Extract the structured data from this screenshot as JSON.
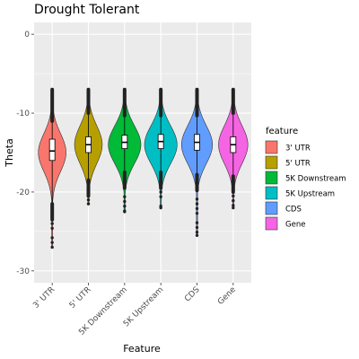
{
  "chart_data": {
    "type": "violin",
    "title": "Drought Tolerant",
    "xlabel": "Feature",
    "ylabel": "Theta",
    "ylim": [
      -31.5,
      1.5
    ],
    "yticks": [
      0,
      -10,
      -20,
      -30
    ],
    "categories": [
      "3' UTR",
      "5' UTR",
      "5K Downstream",
      "5K Upstream",
      "CDS",
      "Gene"
    ],
    "colors": [
      "#F8766D",
      "#B79F00",
      "#00BA38",
      "#00BFC4",
      "#619CFF",
      "#F564E3"
    ],
    "legend": {
      "title": "feature",
      "position": "right"
    },
    "grid": true,
    "series": [
      {
        "category": "3' UTR",
        "min": -27,
        "max": -7,
        "q1": -16,
        "median": -14.8,
        "q3": -13.3,
        "whisker_low": -21.5,
        "whisker_high": -11,
        "outliers_high_to": -7,
        "outliers_low_to": -27,
        "peak": -15,
        "width": 0.85
      },
      {
        "category": "5' UTR",
        "min": -21.5,
        "max": -7,
        "q1": -15,
        "median": -14,
        "q3": -13,
        "whisker_low": -18.5,
        "whisker_high": -10,
        "outliers_high_to": -7,
        "outliers_low_to": -21.5,
        "peak": -14,
        "width": 0.85
      },
      {
        "category": "5K Downstream",
        "min": -22.5,
        "max": -7,
        "q1": -14.5,
        "median": -13.7,
        "q3": -12.8,
        "whisker_low": -17.5,
        "whisker_high": -10.3,
        "outliers_high_to": -7,
        "outliers_low_to": -22.5,
        "peak": -14,
        "width": 1.0
      },
      {
        "category": "5K Upstream",
        "min": -22,
        "max": -7,
        "q1": -14.5,
        "median": -13.6,
        "q3": -12.7,
        "whisker_low": -17.5,
        "whisker_high": -10.3,
        "outliers_high_to": -7,
        "outliers_low_to": -22,
        "peak": -14,
        "width": 1.0
      },
      {
        "category": "CDS",
        "min": -25.5,
        "max": -7,
        "q1": -14.7,
        "median": -13.7,
        "q3": -12.7,
        "whisker_low": -17.8,
        "whisker_high": -10.3,
        "outliers_high_to": -7,
        "outliers_low_to": -25.5,
        "peak": -14,
        "width": 0.95
      },
      {
        "category": "Gene",
        "min": -22,
        "max": -7,
        "q1": -15,
        "median": -14,
        "q3": -13,
        "whisker_low": -18,
        "whisker_high": -10,
        "outliers_high_to": -7,
        "outliers_low_to": -22,
        "peak": -14,
        "width": 0.9
      }
    ]
  }
}
